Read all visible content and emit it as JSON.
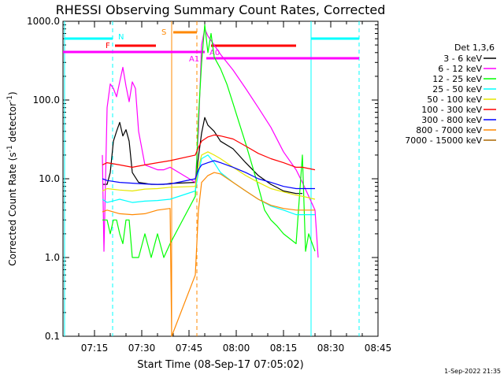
{
  "chart_data": {
    "type": "line",
    "title": "RHESSI Observing Summary Count Rates, Corrected",
    "xlabel": "Start Time (08-Sep-17 07:05:02)",
    "ylabel_main": "Corrected Count Rate (s",
    "ylabel_sup1": "-1",
    "ylabel_mid": " detector",
    "ylabel_sup2": "-1",
    "ylabel_end": ")",
    "y_scale": "log",
    "ylim": [
      0.1,
      1000
    ],
    "xlim_minutes": [
      0,
      100
    ],
    "y_ticks": [
      {
        "value": 1000,
        "label": "1000.0"
      },
      {
        "value": 100,
        "label": "100.0"
      },
      {
        "value": 10,
        "label": "10.0"
      },
      {
        "value": 1,
        "label": "1.0"
      },
      {
        "value": 0.1,
        "label": "0.1"
      }
    ],
    "x_ticks": [
      {
        "t": 10,
        "label": "07:15"
      },
      {
        "t": 25,
        "label": "07:30"
      },
      {
        "t": 40,
        "label": "07:45"
      },
      {
        "t": 55,
        "label": "08:00"
      },
      {
        "t": 70,
        "label": "08:15"
      },
      {
        "t": 85,
        "label": "08:30"
      },
      {
        "t": 100,
        "label": "08:45"
      }
    ],
    "legend_title": "Det 1,3,6",
    "legend_position": "right",
    "series": [
      {
        "name": "3 - 6 keV",
        "color": "#000000",
        "points": [
          [
            12.5,
            8.5
          ],
          [
            14,
            8.5
          ],
          [
            15,
            12
          ],
          [
            16,
            30
          ],
          [
            17,
            40
          ],
          [
            18,
            52
          ],
          [
            19,
            35
          ],
          [
            20,
            42
          ],
          [
            21,
            30
          ],
          [
            22,
            12
          ],
          [
            24,
            9
          ],
          [
            28,
            8.5
          ],
          [
            32,
            8.5
          ],
          [
            34,
            8.7
          ],
          [
            42,
            9
          ],
          [
            43,
            19
          ],
          [
            44,
            38
          ],
          [
            45,
            60
          ],
          [
            46,
            48
          ],
          [
            48,
            40
          ],
          [
            50,
            30
          ],
          [
            54,
            24
          ],
          [
            58,
            16
          ],
          [
            62,
            11
          ],
          [
            66,
            8.5
          ],
          [
            70,
            7
          ],
          [
            74,
            6.5
          ],
          [
            76,
            6.5
          ]
        ]
      },
      {
        "name": "6 - 12 keV",
        "color": "#ff00ff",
        "points": [
          [
            12.5,
            20
          ],
          [
            13,
            1.2
          ],
          [
            14,
            80
          ],
          [
            15,
            160
          ],
          [
            16,
            140
          ],
          [
            17,
            110
          ],
          [
            18,
            170
          ],
          [
            19,
            260
          ],
          [
            20,
            150
          ],
          [
            21,
            95
          ],
          [
            22,
            170
          ],
          [
            23,
            140
          ],
          [
            24,
            40
          ],
          [
            26,
            15
          ],
          [
            28,
            14
          ],
          [
            30,
            13
          ],
          [
            32,
            13
          ],
          [
            34,
            14
          ],
          [
            42,
            9
          ],
          [
            43,
            40
          ],
          [
            44,
            500
          ],
          [
            45,
            800
          ],
          [
            46,
            650
          ],
          [
            48,
            500
          ],
          [
            50,
            380
          ],
          [
            54,
            240
          ],
          [
            58,
            140
          ],
          [
            62,
            80
          ],
          [
            66,
            45
          ],
          [
            70,
            22
          ],
          [
            74,
            13
          ],
          [
            76,
            9
          ],
          [
            80,
            4
          ],
          [
            81,
            1
          ]
        ]
      },
      {
        "name": "12 - 25 keV",
        "color": "#00ff00",
        "points": [
          [
            12.5,
            3
          ],
          [
            14,
            3
          ],
          [
            15,
            2
          ],
          [
            16,
            3
          ],
          [
            17,
            3
          ],
          [
            18,
            2
          ],
          [
            19,
            1.5
          ],
          [
            20,
            3
          ],
          [
            21,
            3
          ],
          [
            22,
            1
          ],
          [
            24,
            1
          ],
          [
            26,
            2
          ],
          [
            28,
            1
          ],
          [
            30,
            2
          ],
          [
            32,
            1
          ],
          [
            34,
            1.5
          ],
          [
            42,
            6
          ],
          [
            43,
            60
          ],
          [
            44,
            300
          ],
          [
            45,
            900
          ],
          [
            46,
            400
          ],
          [
            47,
            700
          ],
          [
            48,
            350
          ],
          [
            50,
            250
          ],
          [
            52,
            160
          ],
          [
            54,
            90
          ],
          [
            56,
            50
          ],
          [
            58,
            28
          ],
          [
            60,
            15
          ],
          [
            62,
            8
          ],
          [
            64,
            4
          ],
          [
            66,
            3
          ],
          [
            68,
            2.5
          ],
          [
            70,
            2
          ],
          [
            74,
            1.5
          ],
          [
            76,
            20
          ],
          [
            77,
            1.2
          ],
          [
            78,
            2
          ],
          [
            80,
            1.2
          ]
        ]
      },
      {
        "name": "25 - 50 keV",
        "color": "#00ffff",
        "points": [
          [
            12.5,
            5.5
          ],
          [
            14,
            5
          ],
          [
            18,
            5.5
          ],
          [
            22,
            5
          ],
          [
            26,
            5.2
          ],
          [
            30,
            5.3
          ],
          [
            34,
            5.5
          ],
          [
            42,
            7
          ],
          [
            43,
            12
          ],
          [
            44,
            18
          ],
          [
            46,
            20
          ],
          [
            48,
            16
          ],
          [
            50,
            12
          ],
          [
            54,
            9
          ],
          [
            58,
            7
          ],
          [
            62,
            5.5
          ],
          [
            66,
            4.5
          ],
          [
            70,
            4
          ],
          [
            74,
            3.5
          ],
          [
            76,
            3.5
          ],
          [
            80,
            3.5
          ]
        ]
      },
      {
        "name": "50 - 100 keV",
        "color": "#e6e600",
        "points": [
          [
            12.5,
            7
          ],
          [
            14,
            7.5
          ],
          [
            18,
            7.2
          ],
          [
            22,
            7
          ],
          [
            26,
            7.4
          ],
          [
            30,
            7.5
          ],
          [
            34,
            7.8
          ],
          [
            42,
            8
          ],
          [
            43,
            14
          ],
          [
            44,
            20
          ],
          [
            46,
            22
          ],
          [
            48,
            20
          ],
          [
            50,
            18
          ],
          [
            54,
            14
          ],
          [
            58,
            11
          ],
          [
            62,
            9
          ],
          [
            66,
            7.5
          ],
          [
            70,
            6.8
          ],
          [
            74,
            6.2
          ],
          [
            76,
            6
          ],
          [
            80,
            5.5
          ]
        ]
      },
      {
        "name": "100 - 300 keV",
        "color": "#ff0000",
        "points": [
          [
            12.5,
            15
          ],
          [
            14,
            16
          ],
          [
            18,
            15
          ],
          [
            22,
            14
          ],
          [
            26,
            15
          ],
          [
            30,
            16
          ],
          [
            34,
            17
          ],
          [
            42,
            20
          ],
          [
            43,
            25
          ],
          [
            44,
            30
          ],
          [
            46,
            34
          ],
          [
            48,
            36
          ],
          [
            50,
            35
          ],
          [
            54,
            32
          ],
          [
            58,
            26
          ],
          [
            62,
            21
          ],
          [
            66,
            18
          ],
          [
            70,
            16
          ],
          [
            74,
            14
          ],
          [
            76,
            14
          ],
          [
            80,
            13
          ]
        ]
      },
      {
        "name": "300 - 800 keV",
        "color": "#0000ff",
        "points": [
          [
            12.5,
            10
          ],
          [
            14,
            9.5
          ],
          [
            18,
            9
          ],
          [
            22,
            8.8
          ],
          [
            26,
            8.6
          ],
          [
            30,
            8.5
          ],
          [
            34,
            8.6
          ],
          [
            42,
            10
          ],
          [
            43,
            13
          ],
          [
            44,
            15
          ],
          [
            46,
            16
          ],
          [
            48,
            17
          ],
          [
            50,
            16
          ],
          [
            54,
            14
          ],
          [
            58,
            12
          ],
          [
            62,
            10
          ],
          [
            66,
            9
          ],
          [
            70,
            8
          ],
          [
            74,
            7.5
          ],
          [
            76,
            7.5
          ],
          [
            80,
            7.5
          ]
        ]
      },
      {
        "name": "800 - 7000 keV",
        "color": "#ff8800",
        "points": [
          [
            12.5,
            3.8
          ],
          [
            14,
            4
          ],
          [
            18,
            3.6
          ],
          [
            22,
            3.5
          ],
          [
            26,
            3.6
          ],
          [
            30,
            4
          ],
          [
            34,
            4.2
          ],
          [
            34.5,
            0.1
          ],
          [
            42,
            0.6
          ],
          [
            43,
            4
          ],
          [
            44,
            9
          ],
          [
            46,
            11
          ],
          [
            48,
            12
          ],
          [
            50,
            11.5
          ],
          [
            54,
            9
          ],
          [
            58,
            7
          ],
          [
            62,
            5.5
          ],
          [
            66,
            4.6
          ],
          [
            70,
            4.2
          ],
          [
            74,
            4
          ],
          [
            76,
            4
          ],
          [
            80,
            4
          ]
        ]
      },
      {
        "name": "7000 - 15000 keV",
        "color": "#aa6600",
        "points": []
      }
    ],
    "annotations": [
      {
        "label": "N",
        "color": "#00ffff"
      },
      {
        "label": "F",
        "color": "#ff0000"
      },
      {
        "label": "S",
        "color": "#ff8800"
      },
      {
        "label": "A1",
        "color": "#ff00ff"
      },
      {
        "label": "A0",
        "color": "#ff00ff"
      }
    ]
  },
  "footer_timestamp": "1-Sep-2022 21:35"
}
